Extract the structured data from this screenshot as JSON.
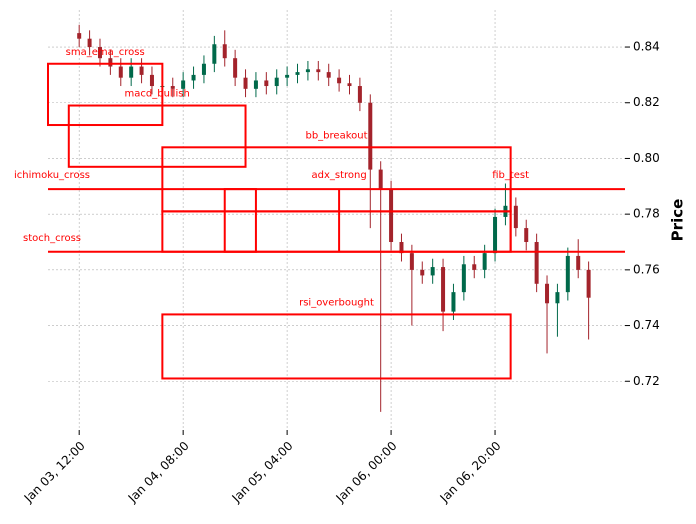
{
  "chart_data": {
    "type": "candlestick",
    "y_label": "Price",
    "x": [
      "Jan 03, 12:00",
      "Jan 03, 14:00",
      "Jan 03, 16:00",
      "Jan 03, 18:00",
      "Jan 03, 20:00",
      "Jan 03, 22:00",
      "Jan 04, 00:00",
      "Jan 04, 02:00",
      "Jan 04, 04:00",
      "Jan 04, 06:00",
      "Jan 04, 08:00",
      "Jan 04, 10:00",
      "Jan 04, 12:00",
      "Jan 04, 14:00",
      "Jan 04, 16:00",
      "Jan 04, 18:00",
      "Jan 04, 20:00",
      "Jan 04, 22:00",
      "Jan 05, 00:00",
      "Jan 05, 02:00",
      "Jan 05, 04:00",
      "Jan 05, 06:00",
      "Jan 05, 08:00",
      "Jan 05, 10:00",
      "Jan 05, 12:00",
      "Jan 05, 14:00",
      "Jan 05, 16:00",
      "Jan 05, 18:00",
      "Jan 05, 20:00",
      "Jan 05, 22:00",
      "Jan 06, 00:00",
      "Jan 06, 02:00",
      "Jan 06, 04:00",
      "Jan 06, 06:00",
      "Jan 06, 08:00",
      "Jan 06, 10:00",
      "Jan 06, 12:00",
      "Jan 06, 14:00",
      "Jan 06, 16:00",
      "Jan 06, 18:00",
      "Jan 06, 20:00",
      "Jan 06, 22:00",
      "Jan 07, 00:00",
      "Jan 07, 02:00",
      "Jan 07, 04:00",
      "Jan 07, 06:00",
      "Jan 07, 08:00",
      "Jan 07, 10:00",
      "Jan 07, 12:00",
      "Jan 07, 14:00"
    ],
    "open": [
      0.845,
      0.843,
      0.84,
      0.836,
      0.833,
      0.829,
      0.833,
      0.83,
      0.826,
      0.826,
      0.825,
      0.828,
      0.83,
      0.834,
      0.841,
      0.836,
      0.829,
      0.825,
      0.828,
      0.826,
      0.829,
      0.83,
      0.831,
      0.832,
      0.831,
      0.829,
      0.827,
      0.826,
      0.82,
      0.796,
      0.789,
      0.77,
      0.766,
      0.76,
      0.758,
      0.761,
      0.745,
      0.752,
      0.762,
      0.76,
      0.766,
      0.779,
      0.783,
      0.775,
      0.77,
      0.755,
      0.748,
      0.752,
      0.765,
      0.76
    ],
    "high": [
      0.848,
      0.846,
      0.843,
      0.839,
      0.836,
      0.836,
      0.836,
      0.833,
      0.829,
      0.829,
      0.831,
      0.833,
      0.837,
      0.844,
      0.846,
      0.839,
      0.832,
      0.831,
      0.831,
      0.832,
      0.833,
      0.834,
      0.835,
      0.835,
      0.834,
      0.832,
      0.83,
      0.829,
      0.823,
      0.799,
      0.792,
      0.773,
      0.769,
      0.763,
      0.764,
      0.764,
      0.755,
      0.765,
      0.765,
      0.769,
      0.782,
      0.791,
      0.786,
      0.778,
      0.773,
      0.758,
      0.755,
      0.768,
      0.771,
      0.763
    ],
    "low": [
      0.84,
      0.837,
      0.833,
      0.83,
      0.826,
      0.826,
      0.827,
      0.823,
      0.823,
      0.822,
      0.822,
      0.825,
      0.827,
      0.831,
      0.833,
      0.826,
      0.822,
      0.822,
      0.823,
      0.823,
      0.826,
      0.827,
      0.828,
      0.828,
      0.826,
      0.824,
      0.823,
      0.817,
      0.775,
      0.709,
      0.767,
      0.763,
      0.74,
      0.755,
      0.755,
      0.738,
      0.742,
      0.749,
      0.757,
      0.757,
      0.763,
      0.776,
      0.772,
      0.767,
      0.752,
      0.73,
      0.736,
      0.749,
      0.757,
      0.735
    ],
    "close": [
      0.843,
      0.84,
      0.836,
      0.833,
      0.829,
      0.833,
      0.83,
      0.826,
      0.826,
      0.825,
      0.828,
      0.83,
      0.834,
      0.841,
      0.836,
      0.829,
      0.825,
      0.828,
      0.826,
      0.829,
      0.83,
      0.831,
      0.832,
      0.831,
      0.829,
      0.827,
      0.826,
      0.82,
      0.796,
      0.789,
      0.77,
      0.766,
      0.76,
      0.758,
      0.761,
      0.745,
      0.752,
      0.762,
      0.76,
      0.766,
      0.779,
      0.783,
      0.775,
      0.77,
      0.755,
      0.748,
      0.752,
      0.765,
      0.76,
      0.75
    ],
    "up_color": "#00694a",
    "down_color": "#a3232b",
    "xlim": [
      "Jan 03, 06:00",
      "Jan 07, 21:00"
    ],
    "xticks": [
      "Jan 03, 12:00",
      "Jan 04, 08:00",
      "Jan 05, 04:00",
      "Jan 06, 00:00",
      "Jan 06, 20:00"
    ],
    "ylim": [
      0.7025,
      0.8533
    ],
    "yticks": [
      0.72,
      0.74,
      0.76,
      0.78,
      {
        "value": 0.8,
        "label": "0.80"
      },
      0.82,
      0.84
    ],
    "grid": true,
    "annotation_color": "#ff0000",
    "annotations": [
      {
        "label": "sma_ema_cross",
        "shape": "rect",
        "x0": "Jan 03, 06:00",
        "x1": "Jan 04, 04:00",
        "y0": 0.812,
        "y1": 0.834
      },
      {
        "label": "macd_bullish",
        "shape": "rect",
        "x0": "Jan 03, 10:00",
        "x1": "Jan 04, 20:00",
        "y0": 0.797,
        "y1": 0.819
      },
      {
        "label": "bb_breakout",
        "shape": "rect",
        "x0": "Jan 04, 04:00",
        "x1": "Jan 06, 23:00",
        "y0": 0.781,
        "y1": 0.804
      },
      {
        "label": "ichimoku_cross",
        "shape": "hline",
        "y0": 0.789
      },
      {
        "label": "stoch_cross",
        "shape": "hline",
        "y0": 0.7665
      },
      {
        "label": "adx_strong",
        "shape": "vline",
        "x0": "Jan 05, 14:00",
        "y0": 0.7665,
        "y1": 0.789
      },
      {
        "label": "fib_test",
        "shape": "vline",
        "x0": "Jan 06, 23:00",
        "y0": 0.7665,
        "y1": 0.789
      },
      {
        "label": "rsi_overbought",
        "shape": "rect",
        "x0": "Jan 04, 04:00",
        "x1": "Jan 06, 23:00",
        "y0": 0.721,
        "y1": 0.744
      },
      {
        "shape": "rect",
        "x0": "Jan 04, 16:00",
        "x1": "Jan 04, 22:00",
        "y0": 0.7665,
        "y1": 0.789
      },
      {
        "shape": "rect",
        "x0": "Jan 04, 04:00",
        "x1": "Jan 06, 23:00",
        "y0": 0.7665,
        "y1": 0.781
      }
    ]
  }
}
